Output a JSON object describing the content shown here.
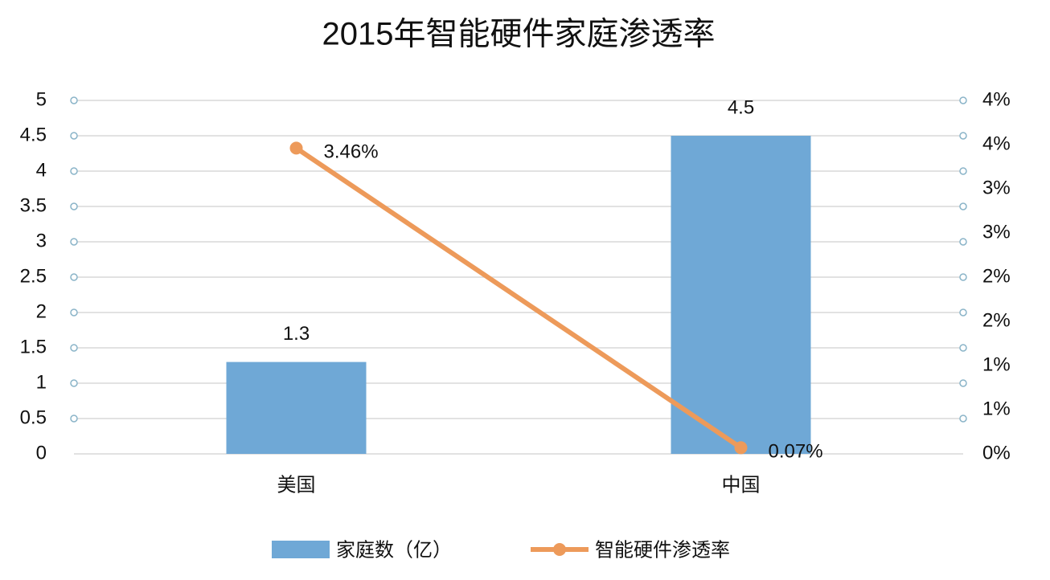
{
  "chart_data": {
    "type": "bar_line",
    "title": "2015年智能硬件家庭渗透率",
    "categories": [
      "美国",
      "中国"
    ],
    "series": [
      {
        "name": "家庭数（亿）",
        "type": "bar",
        "color": "#6fa8d6",
        "values": [
          1.3,
          4.5
        ]
      },
      {
        "name": "智能硬件渗透率",
        "type": "line",
        "axis": "y2",
        "color": "#ed9a5a",
        "values": [
          3.46,
          0.07
        ],
        "value_labels": [
          "3.46%",
          "0.07%"
        ]
      }
    ],
    "ylim": [
      0,
      5
    ],
    "yticks": [
      0,
      0.5,
      1,
      1.5,
      2,
      2.5,
      3,
      3.5,
      4,
      4.5,
      5
    ],
    "y2lim": [
      0,
      4
    ],
    "y2ticks": [
      {
        "value": 0,
        "label": "0%"
      },
      {
        "value": 0.5,
        "label": "1%"
      },
      {
        "value": 1,
        "label": "1%"
      },
      {
        "value": 1.5,
        "label": "2%"
      },
      {
        "value": 2,
        "label": "2%"
      },
      {
        "value": 2.5,
        "label": "3%"
      },
      {
        "value": 3,
        "label": "3%"
      },
      {
        "value": 3.5,
        "label": "4%"
      },
      {
        "value": 4,
        "label": "4%"
      }
    ],
    "grid": true,
    "legend": "bottom"
  }
}
